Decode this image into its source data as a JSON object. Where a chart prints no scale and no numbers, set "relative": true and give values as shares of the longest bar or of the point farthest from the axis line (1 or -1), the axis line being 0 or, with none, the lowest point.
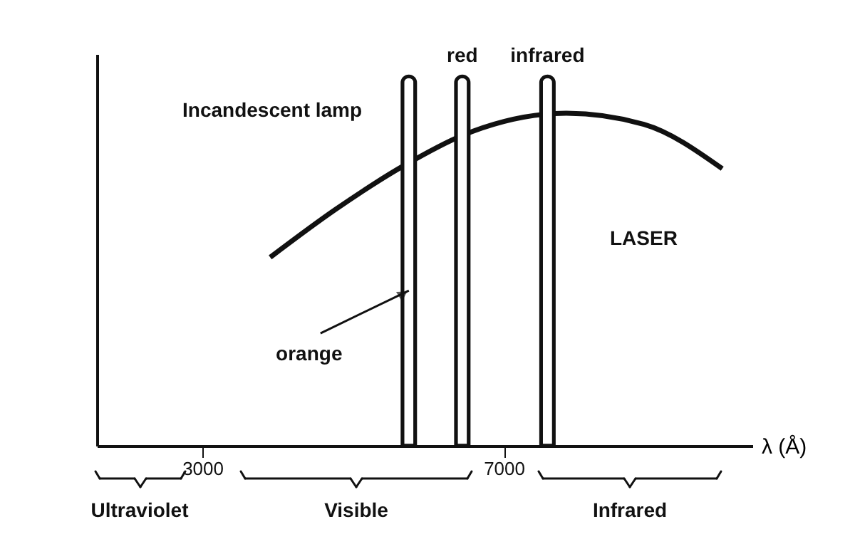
{
  "chart_data": {
    "type": "line",
    "relative": true,
    "xlabel": "λ (Å)",
    "xlim": [
      1600,
      10300
    ],
    "xticks": [
      3000,
      7000
    ],
    "series": [
      {
        "color": "#111111",
        "x": [
          3900,
          4770,
          5690,
          6450,
          7830,
          8860,
          9900
        ],
        "values": [
          0.51,
          0.64,
          0.76,
          0.84,
          0.9,
          0.87,
          0.75
        ]
      },
      {
        "type": "bar",
        "color": "#111111",
        "x": [
          5740,
          6450,
          7580
        ],
        "values": [
          1,
          1,
          1
        ]
      }
    ],
    "annotations": [
      "Incandescent lamp",
      {
        "text": "orange",
        "x": 5740,
        "y": 0.42
      },
      {
        "text": "red",
        "x": 6450,
        "y": 1
      },
      {
        "text": "infrared",
        "x": 7580,
        "y": 1
      },
      "LASER",
      "Ultraviolet",
      "Visible",
      "Infrared"
    ],
    "grid": false,
    "marker": "none",
    "line_style": "solid"
  }
}
